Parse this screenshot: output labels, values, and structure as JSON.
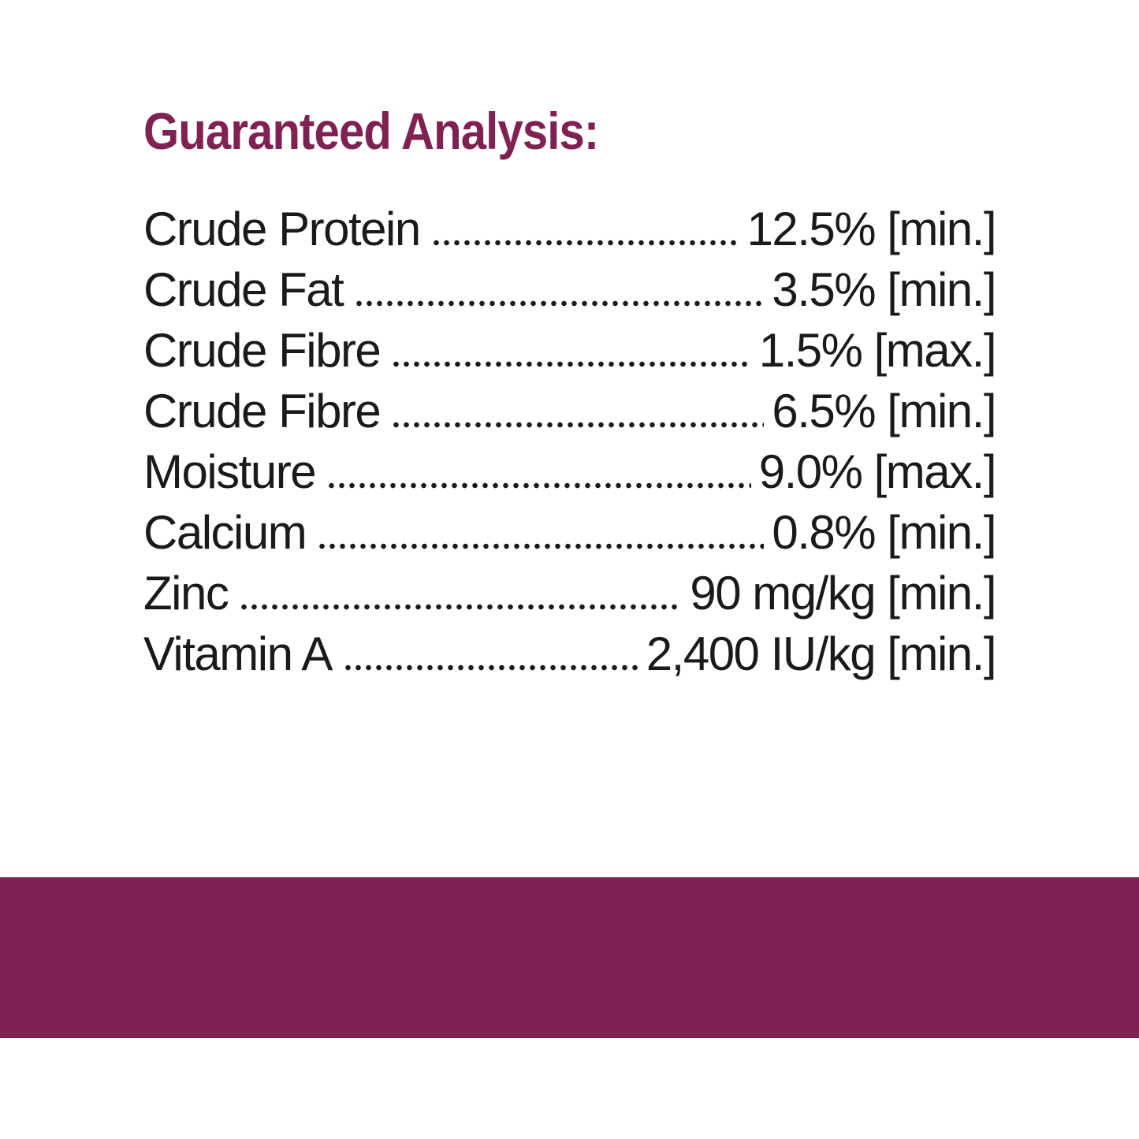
{
  "header": {
    "title": "Guaranteed Analysis:"
  },
  "rows": [
    {
      "name": "Crude Protein",
      "value": "12.5% [min.]"
    },
    {
      "name": "Crude Fat",
      "value": "3.5% [min.]"
    },
    {
      "name": "Crude Fibre",
      "value": "1.5% [max.]"
    },
    {
      "name": "Crude Fibre",
      "value": "6.5% [min.]"
    },
    {
      "name": "Moisture",
      "value": "9.0% [max.]"
    },
    {
      "name": "Calcium",
      "value": "0.8% [min.]"
    },
    {
      "name": "Zinc",
      "value": "90 mg/kg [min.]"
    },
    {
      "name": "Vitamin A",
      "value": "2,400 IU/kg [min.]"
    }
  ]
}
